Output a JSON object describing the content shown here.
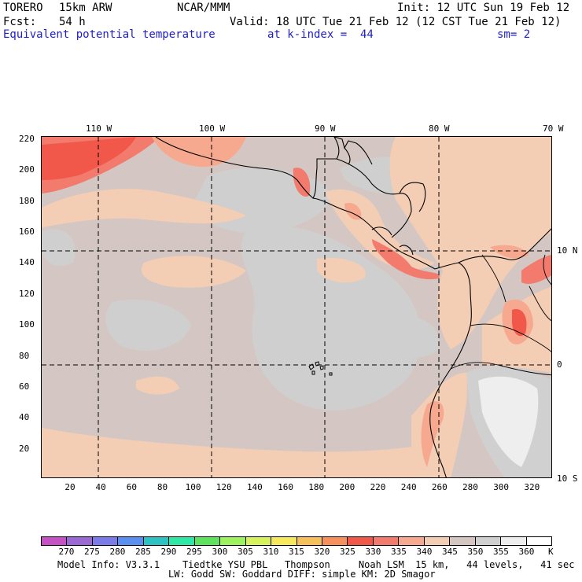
{
  "header": {
    "model": "TORERO",
    "resolution": "15km ARW",
    "org": "NCAR/MMM",
    "init": "Init: 12 UTC Sun 19 Feb 12",
    "fcst_label": "Fcst:",
    "fcst_value": "54 h",
    "valid": "Valid: 18 UTC Tue 21 Feb 12 (12 CST Tue 21 Feb 12)",
    "field": "Equivalent potential temperature",
    "level": "at k-index =  44",
    "smoothing": "sm= 2"
  },
  "map": {
    "top_lon_labels": [
      "110 W",
      "100 W",
      "90 W",
      "80 W",
      "70 W"
    ],
    "right_lat_labels": [
      "10 N",
      "0",
      "10 S"
    ],
    "left_y_ticks": [
      "220",
      "200",
      "180",
      "160",
      "140",
      "120",
      "100",
      "80",
      "60",
      "40",
      "20"
    ],
    "bottom_x_ticks": [
      "20",
      "40",
      "60",
      "80",
      "100",
      "120",
      "140",
      "160",
      "180",
      "200",
      "220",
      "240",
      "260",
      "280",
      "300",
      "320"
    ],
    "grid_extent": {
      "x": [
        1,
        333
      ],
      "y": [
        1,
        222
      ]
    },
    "dominant_value_range_K": "340-350"
  },
  "colorbar": {
    "unit": "K",
    "labels": [
      "270",
      "275",
      "280",
      "285",
      "290",
      "295",
      "300",
      "305",
      "310",
      "315",
      "320",
      "325",
      "330",
      "335",
      "340",
      "345",
      "350",
      "355",
      "360"
    ],
    "colors": [
      "#c452c4",
      "#9a6ad2",
      "#7c7ce8",
      "#5b8fef",
      "#2ec2c2",
      "#2ee8a8",
      "#5fe35f",
      "#9ef25f",
      "#d8f25f",
      "#f6ea5c",
      "#f6c05c",
      "#f6905c",
      "#f2584a",
      "#f27b6e",
      "#f7a98f",
      "#f4cdb5",
      "#d4c7c3",
      "#d0d0d0",
      "#eeeeee",
      "#ffffff"
    ]
  },
  "footer": {
    "line1": "Model Info: V3.3.1    Tiedtke YSU PBL   Thompson     Noah LSM  15 km,   44 levels,   41 sec",
    "line2": "LW: Godd SW: Goddard DIFF: simple KM: 2D Smagor"
  }
}
